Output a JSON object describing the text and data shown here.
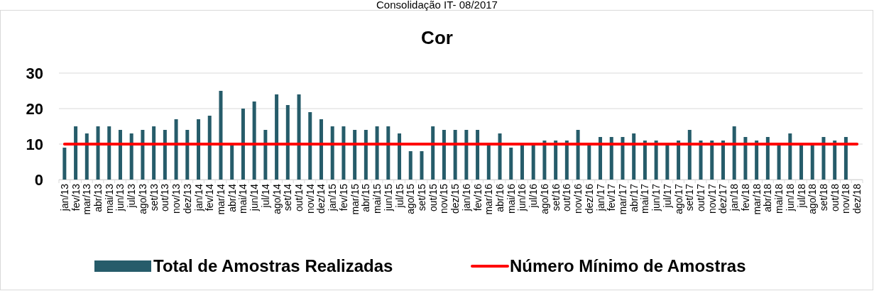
{
  "chart_data": {
    "type": "bar",
    "title": "Cor",
    "annotations": [
      "Consolidação IT- 08/2017"
    ],
    "categories": [
      "jan/13",
      "fev/13",
      "mar/13",
      "abr/13",
      "mai/13",
      "jun/13",
      "jul/13",
      "ago/13",
      "set/13",
      "out/13",
      "nov/13",
      "dez/13",
      "jan/14",
      "fev/14",
      "mar/14",
      "abr/14",
      "mai/14",
      "jun/14",
      "jul/14",
      "ago/14",
      "set/14",
      "out/14",
      "nov/14",
      "dez/14",
      "jan/15",
      "fev/15",
      "mar/15",
      "abr/15",
      "mai/15",
      "jun/15",
      "jul/15",
      "ago/15",
      "set/15",
      "out/15",
      "nov/15",
      "dez/15",
      "jan/16",
      "fev/16",
      "mar/16",
      "abr/16",
      "mai/16",
      "jun/16",
      "jul/16",
      "ago/16",
      "set/16",
      "out/16",
      "nov/16",
      "dez/16",
      "jan/17",
      "fev/17",
      "mar/17",
      "abr/17",
      "mai/17",
      "jun/17",
      "jul/17",
      "ago/17",
      "set/17",
      "out/17",
      "nov/17",
      "dez/17",
      "jan/18",
      "fev/18",
      "mar/18",
      "abr/18",
      "mai/18",
      "jun/18",
      "jul/18",
      "ago/18",
      "set/18",
      "out/18",
      "nov/18",
      "dez/18"
    ],
    "series": [
      {
        "name": "Total de Amostras Realizadas",
        "color": "#265c6a",
        "values": [
          9,
          15,
          13,
          15,
          15,
          14,
          13,
          14,
          15,
          14,
          17,
          14,
          17,
          18,
          25,
          10,
          20,
          22,
          14,
          24,
          21,
          24,
          19,
          17,
          15,
          15,
          14,
          14,
          15,
          15,
          13,
          8,
          8,
          15,
          14,
          14,
          14,
          14,
          10,
          13,
          9,
          10,
          10,
          11,
          11,
          11,
          14,
          10,
          12,
          12,
          12,
          13,
          11,
          11,
          10,
          11,
          14,
          11,
          11,
          11,
          15,
          12,
          11,
          12,
          10,
          13,
          10,
          10,
          12,
          11,
          12,
          null
        ]
      },
      {
        "name": "Número Mínimo de Amostras",
        "type": "line",
        "color": "#ff0000",
        "values": [
          10,
          10,
          10,
          10,
          10,
          10,
          10,
          10,
          10,
          10,
          10,
          10,
          10,
          10,
          10,
          10,
          10,
          10,
          10,
          10,
          10,
          10,
          10,
          10,
          10,
          10,
          10,
          10,
          10,
          10,
          10,
          10,
          10,
          10,
          10,
          10,
          10,
          10,
          10,
          10,
          10,
          10,
          10,
          10,
          10,
          10,
          10,
          10,
          10,
          10,
          10,
          10,
          10,
          10,
          10,
          10,
          10,
          10,
          10,
          10,
          10,
          10,
          10,
          10,
          10,
          10,
          10,
          10,
          10,
          10,
          10,
          10
        ]
      }
    ],
    "ylim": [
      0,
      30
    ],
    "yticks": [
      0,
      10,
      20,
      30
    ],
    "grid": "y",
    "legend": "bottom"
  }
}
